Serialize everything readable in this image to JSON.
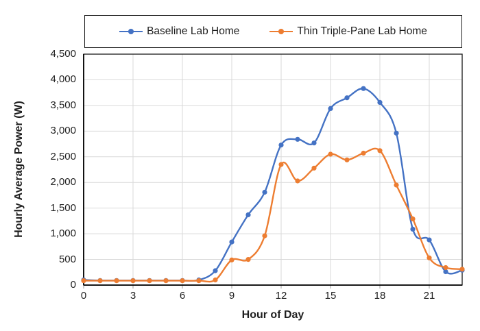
{
  "chart_data": {
    "type": "line",
    "title": "",
    "xlabel": "Hour of Day",
    "ylabel": "Hourly Average Power (W)",
    "x": [
      0,
      1,
      2,
      3,
      4,
      5,
      6,
      7,
      8,
      9,
      10,
      11,
      12,
      13,
      14,
      15,
      16,
      17,
      18,
      19,
      20,
      21,
      22,
      23
    ],
    "xlim": [
      0,
      23
    ],
    "ylim": [
      0,
      4500
    ],
    "xticks": [
      0,
      3,
      6,
      9,
      12,
      15,
      18,
      21
    ],
    "yticks": [
      0,
      500,
      1000,
      1500,
      2000,
      2500,
      3000,
      3500,
      4000,
      4500
    ],
    "ytick_labels": [
      "0",
      "500",
      "1,000",
      "1,500",
      "2,000",
      "2,500",
      "3,000",
      "3,500",
      "4,000",
      "4,500"
    ],
    "grid": true,
    "legend_position": "top",
    "smooth_lines": true,
    "series": [
      {
        "name": "Baseline Lab Home",
        "color": "#4472C4",
        "values": [
          100,
          90,
          90,
          90,
          90,
          90,
          90,
          100,
          280,
          840,
          1370,
          1810,
          2730,
          2840,
          2770,
          3440,
          3650,
          3830,
          3560,
          2960,
          1090,
          880,
          260,
          290
        ]
      },
      {
        "name": "Thin Triple-Pane Lab Home",
        "color": "#ED7D31",
        "values": [
          85,
          85,
          85,
          85,
          85,
          85,
          85,
          85,
          100,
          490,
          500,
          960,
          2350,
          2030,
          2280,
          2550,
          2440,
          2570,
          2620,
          1950,
          1290,
          530,
          340,
          310
        ]
      }
    ],
    "colors": {
      "gridline": "#D9D9D9",
      "plot_border": "#1a1a1a",
      "axis_line": "#000000",
      "tick_mark": "#9b9b9b",
      "text": "#1f1f1f"
    }
  }
}
